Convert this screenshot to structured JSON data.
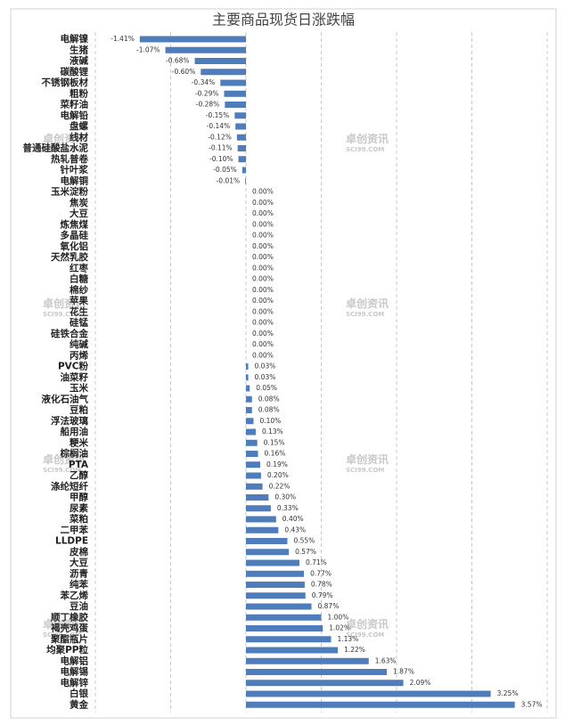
{
  "chart_data": {
    "type": "hbar",
    "title": "主要商品现货日涨跌幅",
    "categories": [
      "电解镍",
      "生猪",
      "液碱",
      "碳酸锂",
      "不锈钢板材",
      "粗粉",
      "菜籽油",
      "电解铅",
      "盘螺",
      "线材",
      "普通硅酸盐水泥",
      "热轧普卷",
      "针叶浆",
      "电解铜",
      "玉米淀粉",
      "焦炭",
      "大豆",
      "炼焦煤",
      "多晶硅",
      "氧化铝",
      "天然乳胶",
      "红枣",
      "白糖",
      "棉纱",
      "苹果",
      "花生",
      "硅锰",
      "硅铁合金",
      "纯碱",
      "丙烯",
      "PVC粉",
      "油菜籽",
      "玉米",
      "液化石油气",
      "豆粕",
      "浮法玻璃",
      "船用油",
      "粳米",
      "棕榈油",
      "PTA",
      "乙醇",
      "涤纶短纤",
      "甲醇",
      "尿素",
      "菜粕",
      "二甲苯",
      "LLDPE",
      "皮棉",
      "大豆",
      "沥青",
      "纯苯",
      "苯乙烯",
      "豆油",
      "顺丁橡胶",
      "褐壳鸡蛋",
      "聚酯瓶片",
      "均聚PP粒",
      "电解铝",
      "电解锡",
      "电解锌",
      "白银",
      "黄金"
    ],
    "values": [
      -1.41,
      -1.07,
      -0.68,
      -0.6,
      -0.34,
      -0.29,
      -0.28,
      -0.15,
      -0.14,
      -0.12,
      -0.11,
      -0.1,
      -0.05,
      -0.01,
      0,
      0,
      0,
      0,
      0,
      0,
      0,
      0,
      0,
      0,
      0,
      0,
      0,
      0,
      0,
      0,
      0.03,
      0.03,
      0.05,
      0.08,
      0.08,
      0.1,
      0.13,
      0.15,
      0.16,
      0.19,
      0.2,
      0.22,
      0.3,
      0.33,
      0.4,
      0.43,
      0.55,
      0.57,
      0.71,
      0.77,
      0.78,
      0.79,
      0.87,
      1.0,
      1.02,
      1.13,
      1.22,
      1.63,
      1.87,
      2.09,
      3.25,
      3.57
    ],
    "value_labels": [
      "-1.41%",
      "-1.07%",
      "-0.68%",
      "-0.60%",
      "-0.34%",
      "-0.29%",
      "-0.28%",
      "-0.15%",
      "-0.14%",
      "-0.12%",
      "-0.11%",
      "-0.10%",
      "-0.05%",
      "-0.01%",
      "0.00%",
      "0.00%",
      "0.00%",
      "0.00%",
      "0.00%",
      "0.00%",
      "0.00%",
      "0.00%",
      "0.00%",
      "0.00%",
      "0.00%",
      "0.00%",
      "0.00%",
      "0.00%",
      "0.00%",
      "0.00%",
      "0.03%",
      "0.03%",
      "0.05%",
      "0.08%",
      "0.08%",
      "0.10%",
      "0.13%",
      "0.15%",
      "0.16%",
      "0.19%",
      "0.20%",
      "0.22%",
      "0.30%",
      "0.33%",
      "0.40%",
      "0.43%",
      "0.55%",
      "0.57%",
      "0.71%",
      "0.77%",
      "0.78%",
      "0.79%",
      "0.87%",
      "1.00%",
      "1.02%",
      "1.13%",
      "1.22%",
      "1.63%",
      "1.87%",
      "2.09%",
      "3.25%",
      "3.57%"
    ],
    "color": "#4f7cbb",
    "xlim": [
      -2,
      4
    ],
    "xticks": [
      -2,
      -1,
      0,
      1,
      2,
      3,
      4
    ],
    "grid": true,
    "watermark": {
      "name": "卓创资讯",
      "url": "SCI99.COM"
    }
  }
}
